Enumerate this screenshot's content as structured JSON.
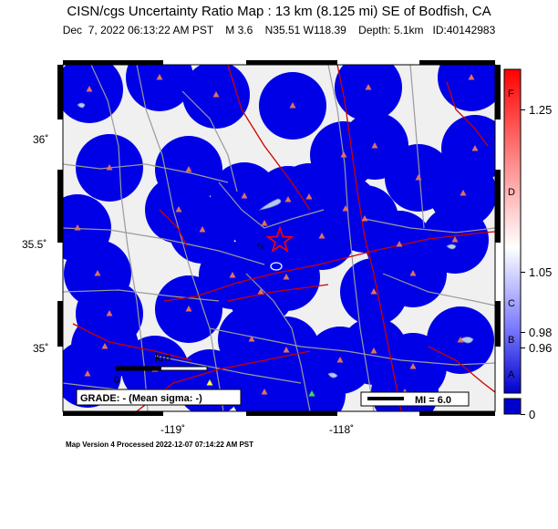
{
  "header": {
    "title": "CISN/cgs Uncertainty Ratio Map : 13 km (8.125 mi) SE of Bodfish, CA",
    "date": "Dec  7, 2022 06:13:22 AM PST",
    "magnitude": "M 3.6",
    "location": "N35.51 W118.39",
    "depth": "Depth: 5.1km",
    "event_id": "ID:40142983"
  },
  "map": {
    "lat_labels": [
      "36˚",
      "35.5˚",
      "35˚"
    ],
    "lon_labels": [
      "-119˚",
      "-118˚"
    ],
    "scale_label": "km",
    "scale_zero": "0",
    "grade_text": "GRADE: - (Mean sigma: -)",
    "mi_legend": "MI = 6.0",
    "contour_label": "2",
    "colors": {
      "coverage": "#0000e6",
      "station": "#e07060",
      "epicenter": "#ff0000",
      "fault": "#cc0000",
      "road": "#9a9a9a",
      "background": "#f0f0f0"
    }
  },
  "colorbar": {
    "letters": [
      "F",
      "D",
      "C",
      "B",
      "A"
    ],
    "values": [
      "1.25",
      "1.05",
      "0.98",
      "0.96",
      "0"
    ]
  },
  "footer": {
    "text": "Map Version 4 Processed 2022-12-07 07:14:22 AM PST"
  }
}
